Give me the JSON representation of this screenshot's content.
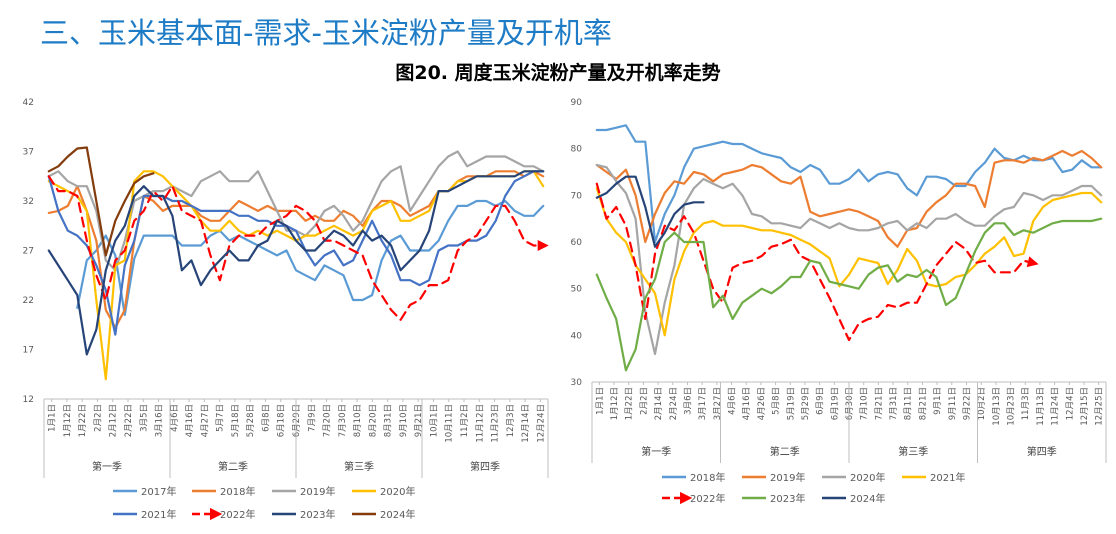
{
  "header": {
    "section_title": "三、玉米基本面-需求-玉米淀粉产量及开机率",
    "figure_title": "图20. 周度玉米淀粉产量及开机率走势"
  },
  "colors": {
    "2017年": "#5b9bd5",
    "2018年": "#ed7d31",
    "2019年": "#a5a5a5",
    "2020年": "#ffc000",
    "2021年": "#4472c4",
    "2022年": "#ff0000",
    "2023年": "#264478",
    "2024年": "#843c0c",
    "2018年_r": "#5b9bd5",
    "2019年_r": "#ed7d31",
    "2020年_r": "#a5a5a5",
    "2021年_r": "#ffc000",
    "2023年_r": "#70ad47",
    "2024年_r": "#264478"
  },
  "chart_data": [
    {
      "type": "line",
      "title": "",
      "x_labels": [
        "1月1日",
        "1月12日",
        "1月22日",
        "2月2日",
        "2月12日",
        "2月22日",
        "3月5日",
        "3月16日",
        "4月6日",
        "4月16日",
        "4月27日",
        "5月7日",
        "5月18日",
        "5月28日",
        "6月8日",
        "6月18日",
        "6月29日",
        "7月9日",
        "7月20日",
        "7月30日",
        "8月10日",
        "8月20日",
        "8月31日",
        "9月10日",
        "9月21日",
        "10月1日",
        "10月11日",
        "11月2日",
        "11月12日",
        "11月23日",
        "12月3日",
        "12月14日",
        "12月24日"
      ],
      "seasons": [
        "第一季",
        "第二季",
        "第三季",
        "第四季"
      ],
      "weeks": 53,
      "ylim": [
        12,
        42
      ],
      "yticks": [
        12,
        17,
        22,
        27,
        32,
        37,
        42
      ],
      "legend_placement": "bottom",
      "series": [
        {
          "name": "2017年",
          "color": "#5b9bd5",
          "style": "solid",
          "values": [
            null,
            null,
            null,
            21.2,
            26.0,
            27.0,
            28.5,
            26.5,
            20.5,
            26.2,
            28.5,
            28.5,
            28.5,
            28.5,
            27.5,
            27.5,
            27.5,
            28.5,
            29.0,
            28.0,
            28.5,
            28.0,
            27.5,
            27.0,
            26.5,
            27.0,
            25.0,
            24.5,
            24.0,
            25.5,
            25.0,
            24.5,
            22.0,
            22.0,
            22.5,
            26.0,
            28.0,
            28.5,
            27.0,
            27.0,
            27.0,
            28.0,
            30.0,
            31.5,
            31.5,
            32.0,
            32.0,
            31.5,
            32.0,
            31.0,
            30.5,
            30.5,
            31.5
          ]
        },
        {
          "name": "2018年",
          "color": "#ed7d31",
          "style": "solid",
          "values": [
            30.8,
            31.0,
            31.5,
            33.5,
            31.0,
            28.0,
            21.0,
            19.2,
            21.0,
            28.0,
            32.5,
            32.0,
            31.0,
            31.5,
            31.5,
            31.5,
            30.5,
            30.0,
            30.0,
            31.0,
            32.0,
            31.5,
            31.0,
            31.5,
            31.0,
            31.0,
            31.0,
            30.0,
            30.5,
            30.0,
            30.0,
            31.0,
            30.5,
            29.5,
            31.0,
            32.0,
            32.0,
            31.5,
            30.5,
            31.0,
            31.5,
            33.0,
            33.0,
            34.0,
            34.5,
            34.5,
            34.5,
            35.0,
            35.0,
            35.0,
            34.5,
            35.0,
            34.5
          ]
        },
        {
          "name": "2019年",
          "color": "#a5a5a5",
          "style": "solid",
          "values": [
            34.5,
            35.0,
            34.0,
            33.5,
            33.5,
            31.0,
            26.0,
            25.0,
            28.0,
            32.0,
            32.5,
            33.0,
            33.0,
            33.5,
            33.0,
            32.5,
            34.0,
            34.5,
            35.0,
            34.0,
            34.0,
            34.0,
            35.0,
            33.0,
            31.0,
            29.0,
            29.0,
            28.5,
            29.5,
            31.0,
            31.5,
            30.5,
            29.0,
            30.0,
            32.0,
            34.0,
            35.0,
            35.5,
            31.0,
            32.5,
            34.0,
            35.5,
            36.5,
            37.0,
            35.5,
            36.0,
            36.5,
            36.5,
            36.5,
            36.0,
            35.5,
            35.5,
            35.0
          ]
        },
        {
          "name": "2020年",
          "color": "#ffc000",
          "style": "solid",
          "values": [
            34.0,
            33.5,
            33.0,
            32.5,
            31.0,
            22.0,
            14.0,
            25.5,
            26.0,
            34.0,
            35.0,
            35.0,
            34.5,
            33.5,
            32.5,
            31.5,
            30.0,
            29.0,
            29.0,
            30.0,
            29.0,
            28.5,
            29.0,
            28.5,
            29.0,
            28.5,
            28.0,
            28.5,
            28.5,
            29.0,
            29.5,
            29.0,
            28.5,
            29.0,
            31.0,
            31.5,
            32.0,
            30.0,
            30.0,
            30.5,
            31.0,
            33.0,
            33.0,
            34.0,
            34.0,
            34.5,
            34.5,
            34.5,
            34.5,
            34.5,
            35.0,
            35.0,
            33.5
          ]
        },
        {
          "name": "2021年",
          "color": "#4472c4",
          "style": "solid",
          "values": [
            34.5,
            31.0,
            29.0,
            28.5,
            27.5,
            25.5,
            23.0,
            18.5,
            25.5,
            28.0,
            32.5,
            32.5,
            32.5,
            32.0,
            32.0,
            31.5,
            31.0,
            31.0,
            31.0,
            31.0,
            30.5,
            30.5,
            30.0,
            30.0,
            29.5,
            29.5,
            29.0,
            27.0,
            25.5,
            26.5,
            27.0,
            25.5,
            26.0,
            28.0,
            30.0,
            28.0,
            26.5,
            24.0,
            24.0,
            23.5,
            24.0,
            27.0,
            27.5,
            27.5,
            28.0,
            28.0,
            28.5,
            30.0,
            32.5,
            34.0,
            34.5,
            35.0,
            35.0
          ]
        },
        {
          "name": "2022年",
          "color": "#ff0000",
          "style": "dashed-arrow",
          "values": [
            34.5,
            33.0,
            33.0,
            32.5,
            28.0,
            24.5,
            22.0,
            26.0,
            27.0,
            30.0,
            31.0,
            33.0,
            32.0,
            33.5,
            31.0,
            30.5,
            30.0,
            26.5,
            24.0,
            27.5,
            28.5,
            28.5,
            28.5,
            29.5,
            30.0,
            30.5,
            31.5,
            31.0,
            30.0,
            28.0,
            28.0,
            27.5,
            27.0,
            26.5,
            24.0,
            22.5,
            21.0,
            20.0,
            21.5,
            22.0,
            23.5,
            23.5,
            24.0,
            27.0,
            28.0,
            28.5,
            30.0,
            31.5,
            31.5,
            30.0,
            28.0,
            27.5,
            27.5
          ]
        },
        {
          "name": "2023年",
          "color": "#264478",
          "style": "solid",
          "values": [
            27.0,
            25.5,
            24.0,
            22.5,
            16.5,
            19.0,
            25.0,
            28.0,
            29.5,
            32.5,
            33.5,
            32.5,
            32.5,
            30.5,
            25.0,
            26.0,
            23.5,
            25.0,
            26.0,
            27.0,
            26.0,
            26.0,
            27.5,
            28.0,
            30.0,
            29.5,
            28.0,
            27.0,
            27.0,
            28.0,
            29.0,
            28.5,
            27.5,
            29.0,
            28.0,
            28.5,
            27.5,
            25.0,
            26.0,
            27.0,
            29.0,
            33.0,
            33.0,
            33.5,
            34.0,
            34.5,
            34.5,
            34.5,
            34.5,
            34.5,
            35.0,
            35.0,
            35.0
          ]
        },
        {
          "name": "2024年",
          "color": "#843c0c",
          "style": "solid",
          "values": [
            35.0,
            35.5,
            36.5,
            37.3,
            37.4,
            32.0,
            26.5,
            30.0,
            32.0,
            33.8,
            34.5,
            34.8
          ]
        }
      ]
    },
    {
      "type": "line",
      "title": "",
      "x_labels": [
        "1月1日",
        "1月12日",
        "1月22日",
        "2月2日",
        "2月14日",
        "2月24日",
        "3月6日",
        "3月17日",
        "3月27日",
        "4月6日",
        "4月16日",
        "4月26日",
        "5月8日",
        "5月19日",
        "5月29日",
        "6月9日",
        "6月19日",
        "6月30日",
        "7月10日",
        "7月21日",
        "7月31日",
        "8月11日",
        "8月21日",
        "9月1日",
        "9月11日",
        "9月22日",
        "10月2日",
        "10月13日",
        "10月23日",
        "11月3日",
        "11月13日",
        "11月24日",
        "12月4日",
        "12月15日",
        "12月25日"
      ],
      "seasons": [
        "第一季",
        "第二季",
        "第三季",
        "第四季"
      ],
      "weeks": 53,
      "ylim": [
        30,
        90
      ],
      "yticks": [
        30,
        40,
        50,
        60,
        70,
        80,
        90
      ],
      "legend_placement": "bottom",
      "series": [
        {
          "name": "2018年",
          "color": "#5b9bd5",
          "style": "solid",
          "values": [
            84.0,
            84.0,
            84.5,
            85.0,
            81.5,
            81.5,
            60.0,
            66.0,
            70.0,
            76.0,
            80.0,
            80.5,
            81.0,
            81.5,
            81.0,
            81.0,
            80.0,
            79.0,
            78.5,
            78.0,
            76.0,
            75.0,
            76.5,
            75.5,
            72.5,
            72.5,
            73.5,
            75.5,
            73.0,
            74.5,
            75.0,
            74.5,
            71.5,
            70.0,
            74.0,
            74.0,
            73.5,
            72.0,
            72.0,
            75.0,
            77.0,
            80.0,
            78.0,
            77.5,
            78.5,
            77.5,
            77.5,
            78.0,
            75.0,
            75.5,
            77.5,
            76.0,
            76.0
          ]
        },
        {
          "name": "2019年",
          "color": "#ed7d31",
          "style": "solid",
          "values": [
            76.5,
            75.0,
            73.5,
            75.5,
            70.0,
            60.0,
            66.0,
            70.5,
            73.0,
            72.5,
            75.0,
            74.5,
            73.0,
            74.5,
            75.0,
            75.5,
            76.5,
            76.0,
            74.5,
            73.0,
            72.5,
            74.0,
            66.5,
            65.5,
            66.0,
            66.5,
            67.0,
            66.5,
            65.5,
            64.5,
            61.0,
            59.0,
            62.5,
            63.0,
            66.5,
            68.5,
            70.0,
            72.5,
            72.5,
            72.0,
            67.5,
            77.0,
            77.5,
            77.5,
            77.0,
            78.0,
            77.5,
            78.5,
            79.5,
            78.5,
            79.5,
            78.0,
            76.0
          ]
        },
        {
          "name": "2020年",
          "color": "#a5a5a5",
          "style": "solid",
          "values": [
            76.5,
            76.0,
            73.0,
            70.5,
            65.0,
            45.0,
            36.0,
            47.0,
            55.0,
            68.0,
            71.5,
            73.5,
            72.5,
            71.5,
            72.5,
            70.0,
            66.0,
            65.5,
            64.0,
            64.0,
            63.5,
            63.0,
            65.0,
            64.0,
            63.0,
            64.0,
            63.0,
            62.5,
            62.5,
            63.0,
            64.0,
            64.5,
            62.5,
            64.0,
            63.0,
            65.0,
            65.0,
            66.0,
            64.5,
            63.5,
            63.5,
            65.5,
            67.0,
            67.5,
            70.5,
            70.0,
            69.0,
            70.0,
            70.0,
            71.0,
            72.0,
            72.0,
            70.0
          ]
        },
        {
          "name": "2021年",
          "color": "#ffc000",
          "style": "solid",
          "values": [
            71.5,
            65.0,
            62.0,
            60.0,
            55.0,
            52.0,
            49.0,
            40.0,
            52.0,
            58.0,
            62.0,
            64.0,
            64.5,
            63.5,
            63.5,
            63.5,
            63.0,
            62.5,
            62.5,
            62.0,
            61.5,
            60.5,
            59.5,
            58.0,
            56.5,
            50.5,
            53.0,
            56.5,
            56.0,
            55.5,
            51.0,
            54.0,
            58.5,
            56.0,
            51.0,
            50.5,
            51.0,
            52.5,
            53.0,
            55.0,
            57.5,
            59.0,
            61.0,
            57.0,
            57.5,
            64.5,
            67.5,
            69.0,
            69.5,
            70.0,
            70.5,
            70.5,
            68.5
          ]
        },
        {
          "name": "2022年",
          "color": "#ff0000",
          "style": "dashed-arrow",
          "values": [
            72.5,
            65.0,
            67.5,
            63.5,
            55.0,
            43.5,
            57.5,
            63.5,
            62.5,
            65.5,
            62.0,
            56.0,
            50.0,
            47.0,
            54.5,
            55.5,
            56.0,
            57.0,
            59.0,
            59.5,
            60.5,
            57.0,
            56.0,
            52.0,
            48.0,
            43.5,
            39.0,
            42.5,
            43.5,
            44.0,
            46.5,
            46.0,
            47.0,
            47.0,
            51.0,
            55.0,
            57.5,
            60.0,
            58.5,
            55.5,
            56.0,
            53.5,
            53.5,
            53.5,
            56.0,
            55.5
          ]
        },
        {
          "name": "2023年",
          "color": "#70ad47",
          "style": "solid",
          "values": [
            53.0,
            48.0,
            43.5,
            32.5,
            37.0,
            48.0,
            52.0,
            60.0,
            62.0,
            60.0,
            60.0,
            60.0,
            46.0,
            48.5,
            43.5,
            47.0,
            48.5,
            50.0,
            49.0,
            50.5,
            52.5,
            52.5,
            56.0,
            55.5,
            51.5,
            51.0,
            50.5,
            50.0,
            53.0,
            54.5,
            55.0,
            51.5,
            53.0,
            52.5,
            54.0,
            52.5,
            46.5,
            48.0,
            53.0,
            58.0,
            62.0,
            64.0,
            64.0,
            61.5,
            62.5,
            62.0,
            63.0,
            64.0,
            64.5,
            64.5,
            64.5,
            64.5,
            65.0
          ]
        },
        {
          "name": "2024年",
          "color": "#264478",
          "style": "solid",
          "values": [
            69.5,
            70.5,
            72.5,
            74.0,
            74.0,
            67.5,
            59.0,
            62.0,
            66.0,
            68.0,
            68.5,
            68.5
          ]
        }
      ]
    }
  ]
}
